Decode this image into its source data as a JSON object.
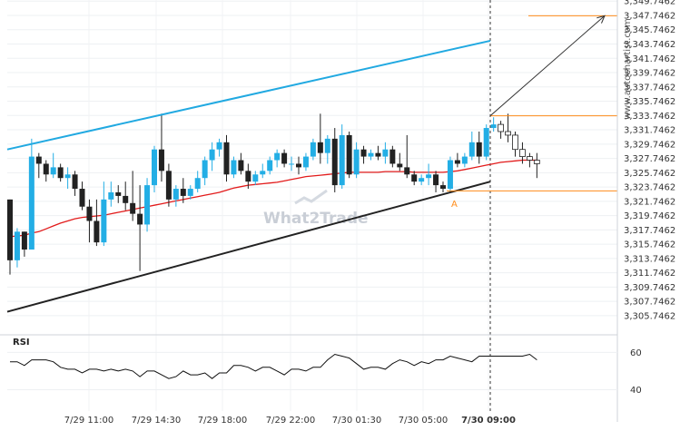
{
  "chart_data": {
    "type": "candlestick",
    "price_ticks": [
      "3,349.7462",
      "3,347.7462",
      "3,345.7462",
      "3,343.7462",
      "3,341.7462",
      "3,339.7462",
      "3,337.7462",
      "3,335.7462",
      "3,333.7462",
      "3,331.7462",
      "3,329.7462",
      "3,327.7462",
      "3,325.7462",
      "3,323.7462",
      "3,321.7462",
      "3,319.7462",
      "3,317.7462",
      "3,315.7462",
      "3,313.7462",
      "3,311.7462",
      "3,309.7462",
      "3,307.7462",
      "3,305.7462"
    ],
    "ylim": [
      3303.2,
      3349.9
    ],
    "x_labels": [
      "7/29 11:00",
      "7/29 14:30",
      "7/29 18:00",
      "7/29 22:00",
      "7/30 01:30",
      "7/30 05:00",
      "7/30 09:00"
    ],
    "candles": [
      {
        "o": 3322.0,
        "h": 3322.0,
        "l": 3311.5,
        "c": 3313.5
      },
      {
        "o": 3313.5,
        "h": 3318.0,
        "l": 3312.5,
        "c": 3317.5
      },
      {
        "o": 3317.5,
        "h": 3317.5,
        "l": 3314.0,
        "c": 3315.0
      },
      {
        "o": 3315.0,
        "h": 3330.5,
        "l": 3315.0,
        "c": 3328.0
      },
      {
        "o": 3328.0,
        "h": 3328.5,
        "l": 3325.0,
        "c": 3327.0
      },
      {
        "o": 3327.0,
        "h": 3327.5,
        "l": 3324.5,
        "c": 3325.5
      },
      {
        "o": 3325.5,
        "h": 3328.5,
        "l": 3325.0,
        "c": 3326.5
      },
      {
        "o": 3326.5,
        "h": 3327.0,
        "l": 3324.5,
        "c": 3325.0
      },
      {
        "o": 3325.0,
        "h": 3326.5,
        "l": 3323.5,
        "c": 3325.5
      },
      {
        "o": 3325.5,
        "h": 3326.0,
        "l": 3322.5,
        "c": 3323.5
      },
      {
        "o": 3323.5,
        "h": 3324.5,
        "l": 3320.5,
        "c": 3321.0
      },
      {
        "o": 3321.0,
        "h": 3322.0,
        "l": 3316.0,
        "c": 3319.0
      },
      {
        "o": 3319.0,
        "h": 3322.0,
        "l": 3315.5,
        "c": 3316.0
      },
      {
        "o": 3316.0,
        "h": 3324.5,
        "l": 3315.5,
        "c": 3322.0
      },
      {
        "o": 3322.0,
        "h": 3324.5,
        "l": 3321.0,
        "c": 3323.0
      },
      {
        "o": 3323.0,
        "h": 3324.0,
        "l": 3321.5,
        "c": 3322.5
      },
      {
        "o": 3322.5,
        "h": 3324.5,
        "l": 3320.5,
        "c": 3321.5
      },
      {
        "o": 3321.5,
        "h": 3326.0,
        "l": 3319.0,
        "c": 3320.0
      },
      {
        "o": 3320.0,
        "h": 3324.0,
        "l": 3312.0,
        "c": 3318.5
      },
      {
        "o": 3318.5,
        "h": 3325.0,
        "l": 3317.5,
        "c": 3324.0
      },
      {
        "o": 3324.0,
        "h": 3329.5,
        "l": 3323.0,
        "c": 3329.0
      },
      {
        "o": 3329.0,
        "h": 3334.0,
        "l": 3324.5,
        "c": 3326.0
      },
      {
        "o": 3326.0,
        "h": 3327.0,
        "l": 3321.0,
        "c": 3322.0
      },
      {
        "o": 3322.0,
        "h": 3324.0,
        "l": 3321.0,
        "c": 3323.5
      },
      {
        "o": 3323.5,
        "h": 3325.0,
        "l": 3321.5,
        "c": 3322.5
      },
      {
        "o": 3322.5,
        "h": 3324.0,
        "l": 3322.0,
        "c": 3323.5
      },
      {
        "o": 3323.5,
        "h": 3326.0,
        "l": 3323.0,
        "c": 3325.0
      },
      {
        "o": 3325.0,
        "h": 3328.0,
        "l": 3324.0,
        "c": 3327.5
      },
      {
        "o": 3327.5,
        "h": 3330.0,
        "l": 3326.0,
        "c": 3329.0
      },
      {
        "o": 3329.0,
        "h": 3330.5,
        "l": 3328.0,
        "c": 3330.0
      },
      {
        "o": 3330.0,
        "h": 3331.0,
        "l": 3324.5,
        "c": 3325.5
      },
      {
        "o": 3325.5,
        "h": 3328.0,
        "l": 3325.0,
        "c": 3327.5
      },
      {
        "o": 3327.5,
        "h": 3328.5,
        "l": 3325.5,
        "c": 3326.0
      },
      {
        "o": 3326.0,
        "h": 3327.0,
        "l": 3323.5,
        "c": 3324.5
      },
      {
        "o": 3324.5,
        "h": 3326.0,
        "l": 3324.0,
        "c": 3325.5
      },
      {
        "o": 3325.5,
        "h": 3327.0,
        "l": 3325.0,
        "c": 3326.0
      },
      {
        "o": 3326.0,
        "h": 3328.0,
        "l": 3325.5,
        "c": 3327.5
      },
      {
        "o": 3327.5,
        "h": 3329.0,
        "l": 3326.5,
        "c": 3328.5
      },
      {
        "o": 3328.5,
        "h": 3329.0,
        "l": 3326.5,
        "c": 3327.0
      },
      {
        "o": 3327.0,
        "h": 3328.0,
        "l": 3326.0,
        "c": 3327.0
      },
      {
        "o": 3327.0,
        "h": 3328.0,
        "l": 3325.5,
        "c": 3326.5
      },
      {
        "o": 3326.5,
        "h": 3328.5,
        "l": 3326.0,
        "c": 3328.0
      },
      {
        "o": 3328.0,
        "h": 3330.5,
        "l": 3327.5,
        "c": 3330.0
      },
      {
        "o": 3330.0,
        "h": 3334.0,
        "l": 3327.0,
        "c": 3328.5
      },
      {
        "o": 3328.5,
        "h": 3331.0,
        "l": 3327.0,
        "c": 3330.5
      },
      {
        "o": 3330.5,
        "h": 3332.0,
        "l": 3323.0,
        "c": 3324.0
      },
      {
        "o": 3324.0,
        "h": 3332.5,
        "l": 3323.5,
        "c": 3331.0
      },
      {
        "o": 3331.0,
        "h": 3331.5,
        "l": 3325.0,
        "c": 3325.5
      },
      {
        "o": 3325.5,
        "h": 3330.0,
        "l": 3325.0,
        "c": 3329.0
      },
      {
        "o": 3329.0,
        "h": 3329.5,
        "l": 3327.0,
        "c": 3328.0
      },
      {
        "o": 3328.0,
        "h": 3329.0,
        "l": 3327.5,
        "c": 3328.5
      },
      {
        "o": 3328.5,
        "h": 3329.5,
        "l": 3327.5,
        "c": 3328.0
      },
      {
        "o": 3328.0,
        "h": 3330.0,
        "l": 3327.0,
        "c": 3329.0
      },
      {
        "o": 3329.0,
        "h": 3329.5,
        "l": 3326.5,
        "c": 3327.0
      },
      {
        "o": 3327.0,
        "h": 3328.5,
        "l": 3326.0,
        "c": 3326.5
      },
      {
        "o": 3326.5,
        "h": 3331.0,
        "l": 3325.0,
        "c": 3325.5
      },
      {
        "o": 3325.5,
        "h": 3326.0,
        "l": 3324.0,
        "c": 3324.5
      },
      {
        "o": 3324.5,
        "h": 3325.5,
        "l": 3324.0,
        "c": 3325.0
      },
      {
        "o": 3325.0,
        "h": 3327.0,
        "l": 3324.0,
        "c": 3325.5
      },
      {
        "o": 3325.5,
        "h": 3326.0,
        "l": 3323.0,
        "c": 3324.0
      },
      {
        "o": 3324.0,
        "h": 3324.5,
        "l": 3323.0,
        "c": 3323.5
      },
      {
        "o": 3323.5,
        "h": 3328.0,
        "l": 3323.0,
        "c": 3327.5
      },
      {
        "o": 3327.5,
        "h": 3328.5,
        "l": 3326.5,
        "c": 3327.0
      },
      {
        "o": 3327.0,
        "h": 3328.5,
        "l": 3326.5,
        "c": 3328.0
      },
      {
        "o": 3328.0,
        "h": 3331.5,
        "l": 3327.5,
        "c": 3330.0
      },
      {
        "o": 3330.0,
        "h": 3331.5,
        "l": 3327.0,
        "c": 3328.0
      },
      {
        "o": 3328.0,
        "h": 3332.5,
        "l": 3327.5,
        "c": 3332.0
      },
      {
        "o": 3332.0,
        "h": 3333.5,
        "l": 3331.5,
        "c": 3332.5
      },
      {
        "o": 3332.5,
        "h": 3333.0,
        "l": 3330.5,
        "c": 3331.5
      },
      {
        "o": 3331.5,
        "h": 3334.0,
        "l": 3330.0,
        "c": 3331.0
      },
      {
        "o": 3331.0,
        "h": 3331.5,
        "l": 3328.0,
        "c": 3329.0
      },
      {
        "o": 3329.0,
        "h": 3330.0,
        "l": 3327.0,
        "c": 3328.0
      },
      {
        "o": 3328.0,
        "h": 3328.5,
        "l": 3326.5,
        "c": 3327.5
      },
      {
        "o": 3327.5,
        "h": 3328.5,
        "l": 3325.0,
        "c": 3327.0
      }
    ],
    "ma_values": [
      3316.8,
      3316.9,
      3317.0,
      3317.3,
      3317.5,
      3317.9,
      3318.3,
      3318.7,
      3319.0,
      3319.3,
      3319.5,
      3319.6,
      3319.7,
      3319.8,
      3320.0,
      3320.2,
      3320.4,
      3320.6,
      3320.8,
      3321.0,
      3321.2,
      3321.4,
      3321.6,
      3321.8,
      3322.0,
      3322.2,
      3322.4,
      3322.6,
      3322.8,
      3323.0,
      3323.3,
      3323.6,
      3323.8,
      3324.0,
      3324.1,
      3324.2,
      3324.3,
      3324.4,
      3324.6,
      3324.8,
      3325.0,
      3325.2,
      3325.3,
      3325.4,
      3325.5,
      3325.6,
      3325.7,
      3325.8,
      3325.8,
      3325.8,
      3325.8,
      3325.8,
      3325.9,
      3325.9,
      3325.9,
      3325.9,
      3325.8,
      3325.8,
      3325.8,
      3325.8,
      3325.8,
      3325.9,
      3326.0,
      3326.2,
      3326.4,
      3326.6,
      3326.8,
      3327.0,
      3327.2,
      3327.3,
      3327.4,
      3327.5,
      3327.5,
      3327.5
    ],
    "channel_upper": {
      "x": [
        "7/29 08:40",
        "7/30 09:00"
      ],
      "y": [
        3329.0,
        3344.2
      ]
    },
    "channel_lower": {
      "x": [
        "7/29 08:40",
        "7/30 09:00"
      ],
      "y": [
        3306.3,
        3324.5
      ]
    },
    "projection_arrow": {
      "from": 3333.7,
      "to": 3347.7
    },
    "upper_level": 3333.7,
    "lower_level": 3323.2,
    "target_level": 3347.7,
    "point_label": "A",
    "rsi": {
      "label": "RSI",
      "ticks": [
        "60",
        "40"
      ],
      "ylim": [
        30,
        68
      ],
      "values": [
        55,
        55,
        53,
        56,
        56,
        56,
        55,
        52,
        51,
        51,
        49,
        51,
        51,
        50,
        51,
        50,
        51,
        50,
        47,
        50,
        50,
        48,
        46,
        47,
        50,
        48,
        48,
        49,
        46,
        49,
        49,
        53,
        53,
        52,
        50,
        52,
        52,
        50,
        48,
        51,
        51,
        50,
        52,
        52,
        56,
        59,
        58,
        57,
        54,
        51,
        52,
        52,
        51,
        54,
        56,
        55,
        53,
        55,
        54,
        56,
        56,
        58,
        57,
        56,
        55,
        58,
        58,
        58,
        58,
        58,
        58,
        58,
        59,
        56
      ]
    },
    "colors": {
      "up": "#23aee5",
      "down": "#222222",
      "ma": "#e21b1b",
      "channel_top": "#21a9e1",
      "channel_bottom": "#222222",
      "level": "#ff8c1a",
      "arrow": "#333333"
    }
  },
  "watermark": "What2Trade",
  "side_brand": "www.autochartist.com"
}
